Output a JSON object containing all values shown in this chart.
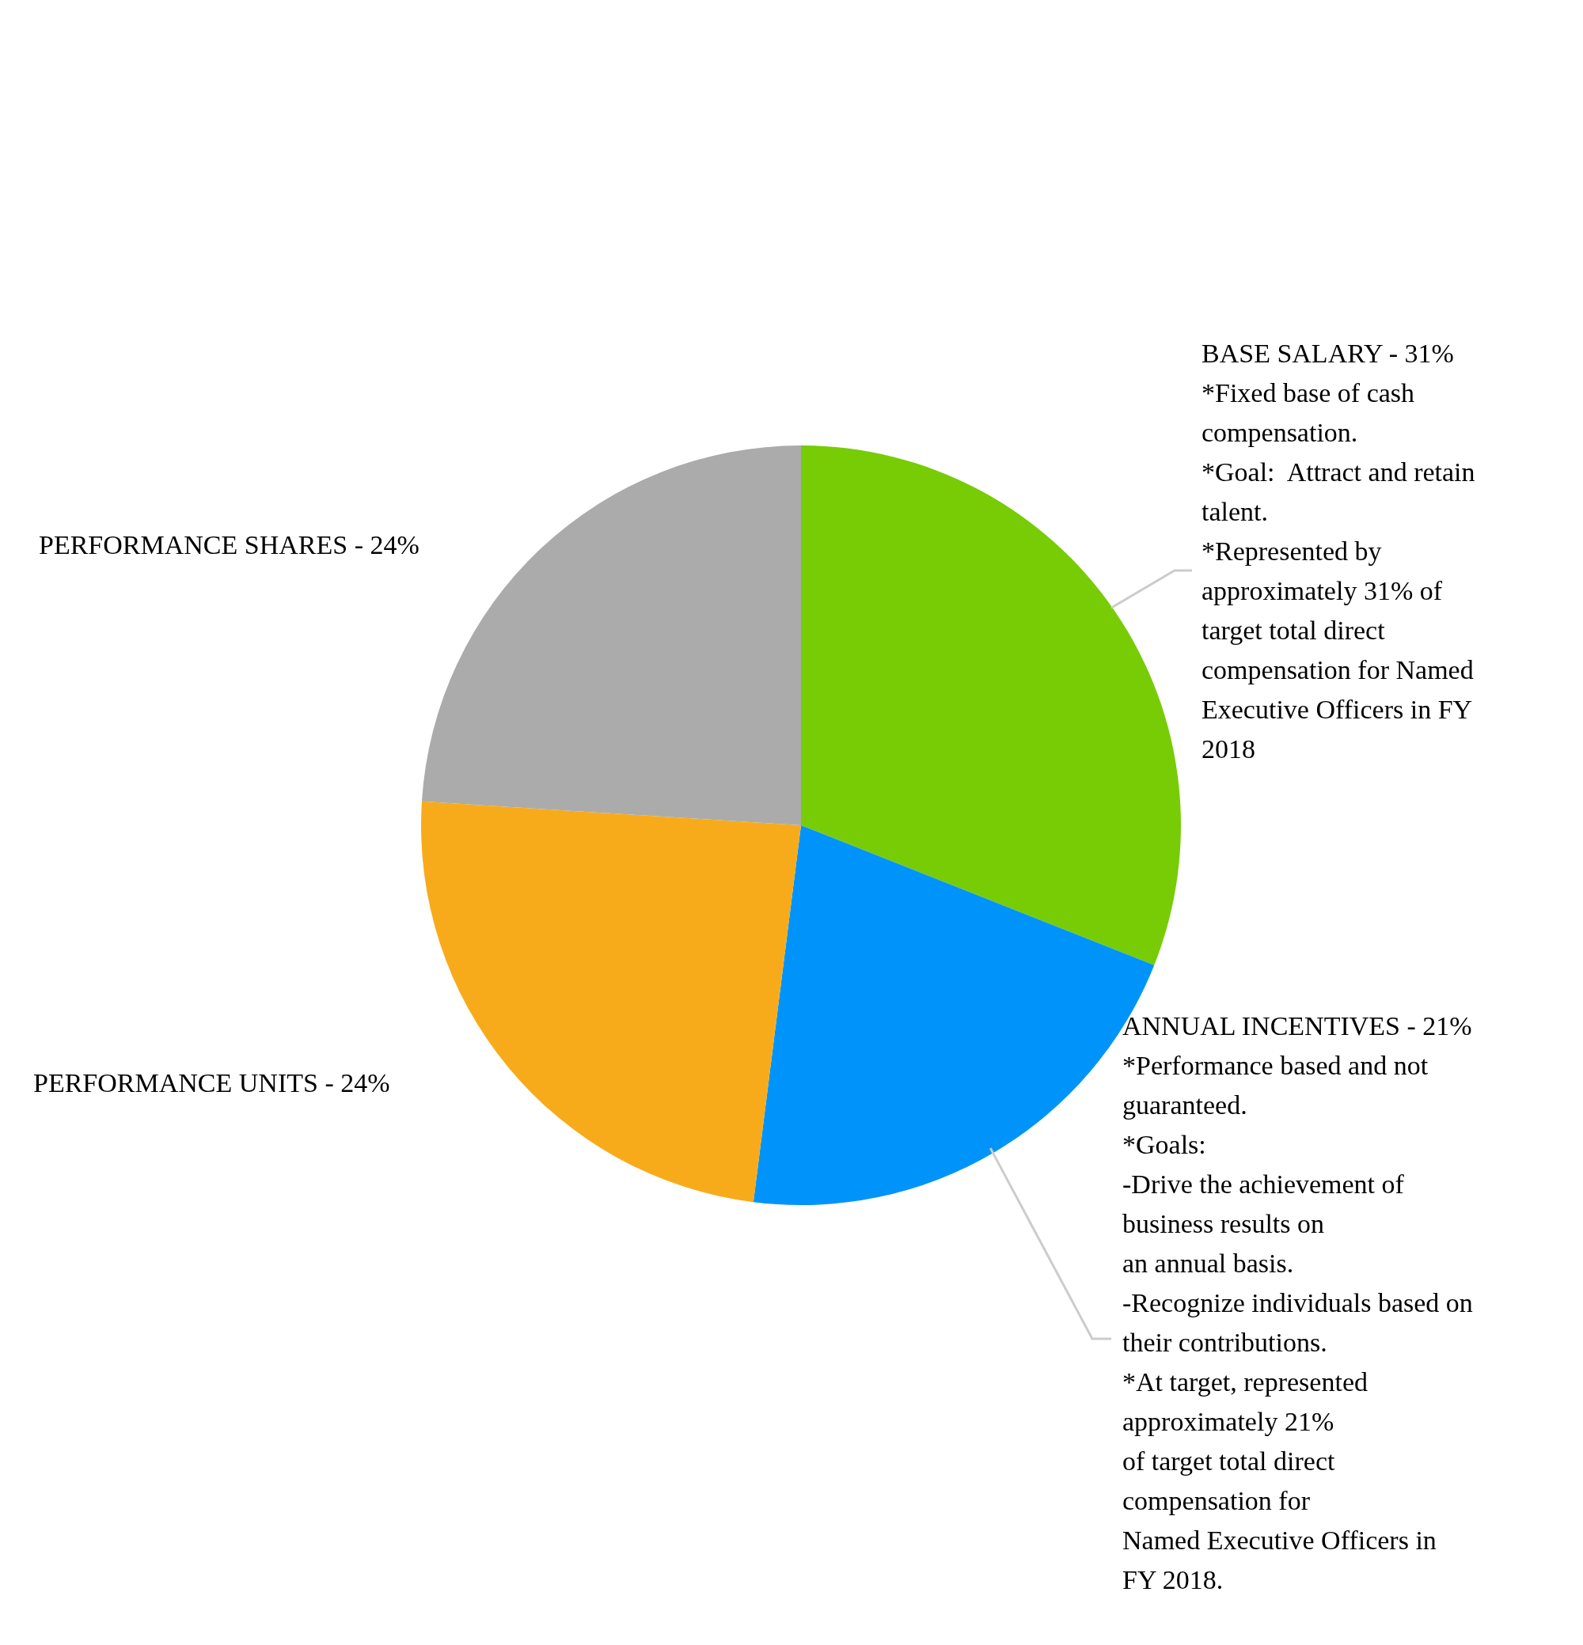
{
  "chart_data": {
    "type": "pie",
    "categories": [
      "BASE SALARY - 31%",
      "ANNUAL INCENTIVES - 21%",
      "PERFORMANCE UNITS - 24%",
      "PERFORMANCE SHARES - 24%"
    ],
    "values": [
      31,
      21,
      24,
      24
    ],
    "colors": [
      "#77cc06",
      "#0094fb",
      "#f8ab1a",
      "#ababab"
    ],
    "annotations": [
      "*Fixed base of cash\ncompensation.\n*Goal:  Attract and retain\ntalent.\n*Represented by\napproximately 31% of\ntarget total direct\ncompensation for Named\nExecutive Officers in FY\n2018",
      "*Performance based and not\nguaranteed.\n*Goals:\n-Drive the achievement of\nbusiness results on\nan annual basis.\n-Recognize individuals based on\ntheir contributions.\n*At target, represented\napproximately 21%\nof target total direct\ncompensation for\nNamed Executive Officers in\nFY 2018."
    ],
    "legend": false
  }
}
